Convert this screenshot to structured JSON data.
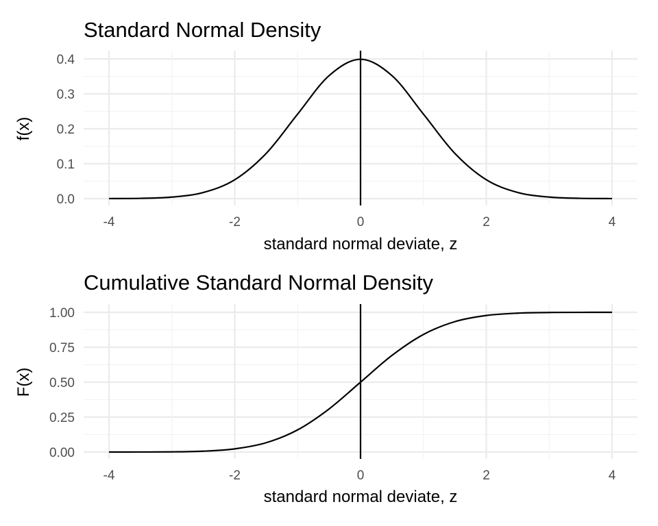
{
  "chart_data": [
    {
      "type": "line",
      "title": "Standard Normal Density",
      "xlabel": "standard normal deviate, z",
      "ylabel": "f(x)",
      "xlim": [
        -4,
        4
      ],
      "ylim": [
        0,
        0.4
      ],
      "x_ticks": [
        "-4",
        "-2",
        "0",
        "2",
        "4"
      ],
      "y_ticks": [
        "0.0",
        "0.1",
        "0.2",
        "0.3",
        "0.4"
      ],
      "grid": true,
      "vline_x": 0,
      "x": [
        -4,
        -3.5,
        -3,
        -2.5,
        -2,
        -1.5,
        -1,
        -0.5,
        0,
        0.5,
        1,
        1.5,
        2,
        2.5,
        3,
        3.5,
        4
      ],
      "y": [
        0.0001,
        0.0009,
        0.0044,
        0.0175,
        0.054,
        0.1295,
        0.242,
        0.3521,
        0.3989,
        0.3521,
        0.242,
        0.1295,
        0.054,
        0.0175,
        0.0044,
        0.0009,
        0.0001
      ],
      "line_color": "#000000"
    },
    {
      "type": "line",
      "title": "Cumulative Standard Normal Density",
      "xlabel": "standard normal deviate, z",
      "ylabel": "F(x)",
      "xlim": [
        -4,
        4
      ],
      "ylim": [
        0,
        1
      ],
      "x_ticks": [
        "-4",
        "-2",
        "0",
        "2",
        "4"
      ],
      "y_ticks": [
        "0.00",
        "0.25",
        "0.50",
        "0.75",
        "1.00"
      ],
      "grid": true,
      "vline_x": 0,
      "x": [
        -4,
        -3.5,
        -3,
        -2.5,
        -2,
        -1.5,
        -1,
        -0.5,
        0,
        0.5,
        1,
        1.5,
        2,
        2.5,
        3,
        3.5,
        4
      ],
      "y": [
        0.0,
        0.0002,
        0.0013,
        0.0062,
        0.0228,
        0.0668,
        0.1587,
        0.3085,
        0.5,
        0.6915,
        0.8413,
        0.9332,
        0.9772,
        0.9938,
        0.9987,
        0.9998,
        1.0
      ],
      "line_color": "#000000"
    }
  ]
}
